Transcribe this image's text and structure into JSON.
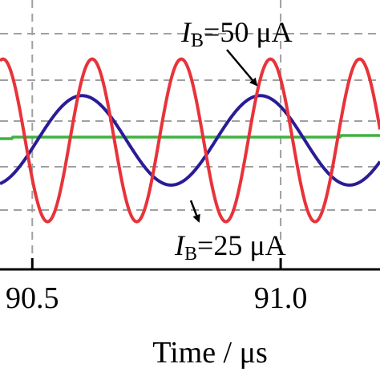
{
  "chart_data": {
    "type": "line",
    "title": "",
    "xlabel": "Time / μs",
    "ylabel": "",
    "xlim": [
      90.435,
      91.2
    ],
    "ylim": [
      -1.35,
      1.45
    ],
    "x_ticks": [
      {
        "value": 90.5,
        "label": "90.5"
      },
      {
        "value": 91.0,
        "label": "91.0"
      }
    ],
    "grid": true,
    "colors": {
      "red": "#e8333a",
      "blue": "#2a1c96",
      "green": "#3fb23f",
      "grid": "#a0a0a0"
    },
    "series": [
      {
        "color": "#e8333a",
        "amplitude": 1.0,
        "offset": 0.0,
        "period": 0.1795,
        "peak_x": 90.441
      },
      {
        "color": "#2a1c96",
        "amplitude": 0.55,
        "offset": 0.0,
        "period": 0.359,
        "peak_x": 90.6
      },
      {
        "color": "#3fb23f",
        "amplitude": 0.0,
        "offset": 0.04,
        "period": 0,
        "peak_x": 0
      }
    ],
    "annotations": [
      {
        "main": "I",
        "sub": "B",
        "rest": "=50 μA"
      },
      {
        "main": "I",
        "sub": "B",
        "rest": "=25 μA"
      }
    ]
  }
}
